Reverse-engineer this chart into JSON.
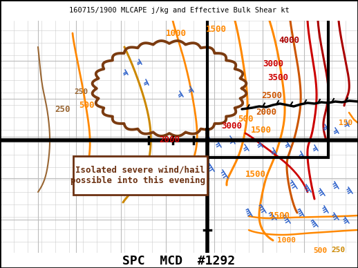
{
  "title_top": "160715/1900 MLCAPE j/kg and Effective Bulk Shear kt",
  "title_bottom": "SPC  MCD  #1292",
  "annotation_text": "Isolated severe wind/hail\npossible into this evening.",
  "colors": {
    "orange": "#ff8800",
    "dark_orange": "#cc5500",
    "red": "#cc0000",
    "dark_red": "#aa0000",
    "brown": "#8B4513",
    "blue": "#3366cc",
    "dark_blue": "#003399",
    "black": "#000000",
    "gray_line": "#aaaaaa",
    "map_bg": "#f0f0f0",
    "ann_border": "#6b3010"
  },
  "fig_width": 5.18,
  "fig_height": 3.88,
  "dpi": 100
}
